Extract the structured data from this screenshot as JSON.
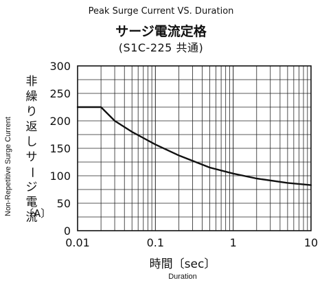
{
  "header": {
    "title_en": "Peak Surge Current VS. Duration",
    "title_jp": "サージ電流定格",
    "subtitle": "(S1C-225 共通)"
  },
  "axes": {
    "y_label_en": "Non-Repetitive Surge Current",
    "y_label_jp": "非繰り返しサージ電流",
    "y_unit": "〔A〕",
    "x_label_jp": "時間〔sec〕",
    "x_label_en": "Duration"
  },
  "chart_data": {
    "type": "line",
    "title": "Peak Surge Current VS. Duration",
    "xlabel": "Duration",
    "ylabel": "Non-Repetitive Surge Current",
    "xscale": "log",
    "xlim": [
      0.01,
      10
    ],
    "ylim": [
      0,
      300
    ],
    "grid": true,
    "x_ticks": [
      0.01,
      0.1,
      1,
      10
    ],
    "x_tick_labels": [
      "0.01",
      "0.1",
      "1",
      "10"
    ],
    "y_ticks": [
      0,
      50,
      100,
      150,
      200,
      250,
      300
    ],
    "y_tick_labels": [
      "0",
      "50",
      "100",
      "150",
      "200",
      "250",
      "300"
    ],
    "series": [
      {
        "x": [
          0.01,
          0.02,
          0.03,
          0.05,
          0.1,
          0.2,
          0.5,
          1,
          2,
          5,
          10
        ],
        "y": [
          225,
          225,
          200,
          180,
          157,
          137,
          115,
          104,
          95,
          87,
          83
        ]
      }
    ],
    "color": "#111111"
  }
}
